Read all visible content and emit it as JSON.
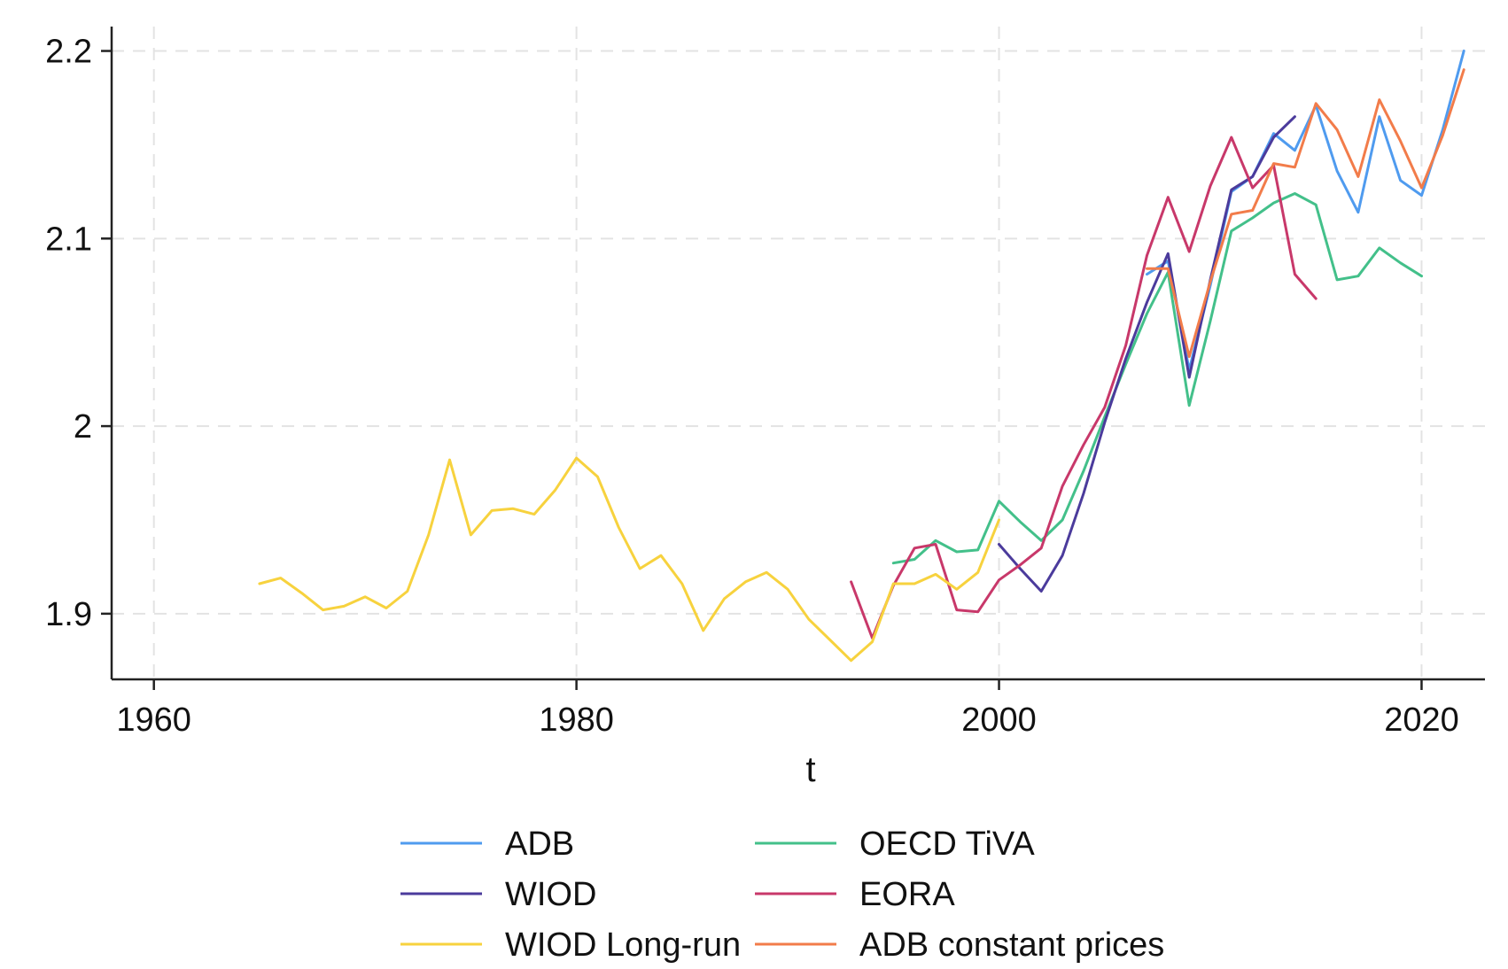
{
  "chart_data": {
    "type": "line",
    "title": "",
    "xlabel": "t",
    "ylabel": "",
    "xlim": [
      1958,
      2023
    ],
    "ylim": [
      1.865,
      2.213
    ],
    "xticks": [
      1960,
      1980,
      2000,
      2020
    ],
    "yticks": [
      1.9,
      2,
      2.1,
      2.2
    ],
    "xtick_labels": [
      "1960",
      "1980",
      "2000",
      "2020"
    ],
    "ytick_labels": [
      "1.9",
      "2",
      "2.1",
      "2.2"
    ],
    "grid": true,
    "legend_position": "bottom",
    "series": [
      {
        "name": "ADB",
        "color": "#4f9bef",
        "x": [
          2007,
          2008,
          2009,
          2010,
          2011,
          2012,
          2013,
          2014,
          2015,
          2016,
          2017,
          2018,
          2019,
          2020,
          2021,
          2022
        ],
        "y": [
          2.081,
          2.088,
          2.03,
          2.075,
          2.125,
          2.133,
          2.156,
          2.147,
          2.171,
          2.136,
          2.114,
          2.165,
          2.131,
          2.123,
          2.158,
          2.2
        ]
      },
      {
        "name": "OECD TiVA",
        "color": "#43c08a",
        "x": [
          1995,
          1996,
          1997,
          1998,
          1999,
          2000,
          2001,
          2002,
          2003,
          2004,
          2005,
          2006,
          2007,
          2008,
          2009,
          2010,
          2011,
          2012,
          2013,
          2014,
          2015,
          2016,
          2017,
          2018,
          2019,
          2020
        ],
        "y": [
          1.927,
          1.929,
          1.939,
          1.933,
          1.934,
          1.96,
          1.949,
          1.939,
          1.95,
          1.976,
          2.005,
          2.033,
          2.06,
          2.082,
          2.011,
          2.056,
          2.104,
          2.111,
          2.119,
          2.124,
          2.118,
          2.078,
          2.08,
          2.095,
          2.087,
          2.08
        ]
      },
      {
        "name": "WIOD",
        "color": "#4b3b9c",
        "x": [
          2000,
          2001,
          2002,
          2003,
          2004,
          2005,
          2006,
          2007,
          2008,
          2009,
          2010,
          2011,
          2012,
          2013,
          2014
        ],
        "y": [
          1.937,
          1.924,
          1.912,
          1.931,
          1.964,
          2.002,
          2.036,
          2.066,
          2.092,
          2.026,
          2.078,
          2.126,
          2.133,
          2.154,
          2.165
        ]
      },
      {
        "name": "EORA",
        "color": "#c8386a",
        "x": [
          1993,
          1994,
          1995,
          1996,
          1997,
          1998,
          1999,
          2000,
          2001,
          2002,
          2003,
          2004,
          2005,
          2006,
          2007,
          2008,
          2009,
          2010,
          2011,
          2012,
          2013,
          2014,
          2015
        ],
        "y": [
          1.917,
          1.887,
          1.915,
          1.935,
          1.937,
          1.902,
          1.901,
          1.918,
          1.926,
          1.935,
          1.968,
          1.99,
          2.01,
          2.043,
          2.091,
          2.122,
          2.093,
          2.128,
          2.154,
          2.127,
          2.139,
          2.081,
          2.068
        ]
      },
      {
        "name": "WIOD Long-run",
        "color": "#f7d23e",
        "x": [
          1965,
          1966,
          1967,
          1968,
          1969,
          1970,
          1971,
          1972,
          1973,
          1974,
          1975,
          1976,
          1977,
          1978,
          1979,
          1980,
          1981,
          1982,
          1983,
          1984,
          1985,
          1986,
          1987,
          1988,
          1989,
          1990,
          1991,
          1992,
          1993,
          1994,
          1995,
          1996,
          1997,
          1998,
          1999,
          2000
        ],
        "y": [
          1.916,
          1.919,
          1.911,
          1.902,
          1.904,
          1.909,
          1.903,
          1.912,
          1.942,
          1.982,
          1.942,
          1.955,
          1.956,
          1.953,
          1.966,
          1.983,
          1.973,
          1.946,
          1.924,
          1.931,
          1.916,
          1.891,
          1.908,
          1.917,
          1.922,
          1.913,
          1.897,
          1.886,
          1.875,
          1.885,
          1.916,
          1.916,
          1.921,
          1.913,
          1.922,
          1.95
        ]
      },
      {
        "name": "ADB constant prices",
        "color": "#f27c4a",
        "x": [
          2007,
          2008,
          2009,
          2010,
          2011,
          2012,
          2013,
          2014,
          2015,
          2016,
          2017,
          2018,
          2019,
          2020,
          2021,
          2022
        ],
        "y": [
          2.084,
          2.084,
          2.037,
          2.077,
          2.113,
          2.115,
          2.14,
          2.138,
          2.172,
          2.158,
          2.133,
          2.174,
          2.152,
          2.127,
          2.155,
          2.19
        ]
      }
    ]
  }
}
